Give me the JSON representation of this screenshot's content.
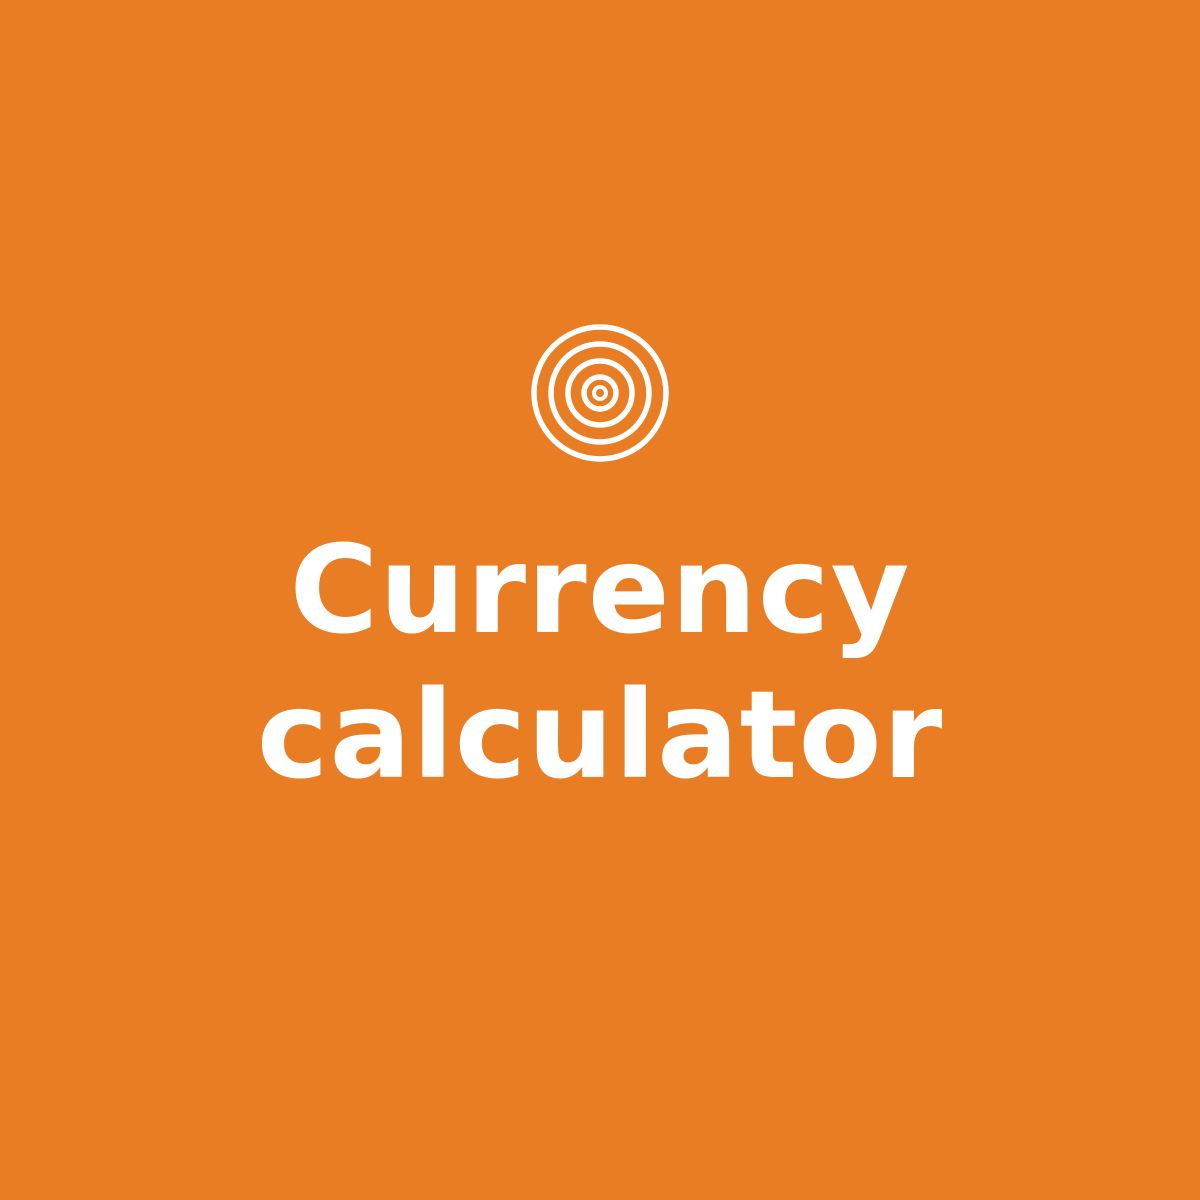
{
  "tile": {
    "background_color": "#E87D24",
    "foreground_color": "#FFFFFF",
    "icon": "concentric-circles-icon",
    "title_line_1": "Currency",
    "title_line_2": "calculator"
  }
}
